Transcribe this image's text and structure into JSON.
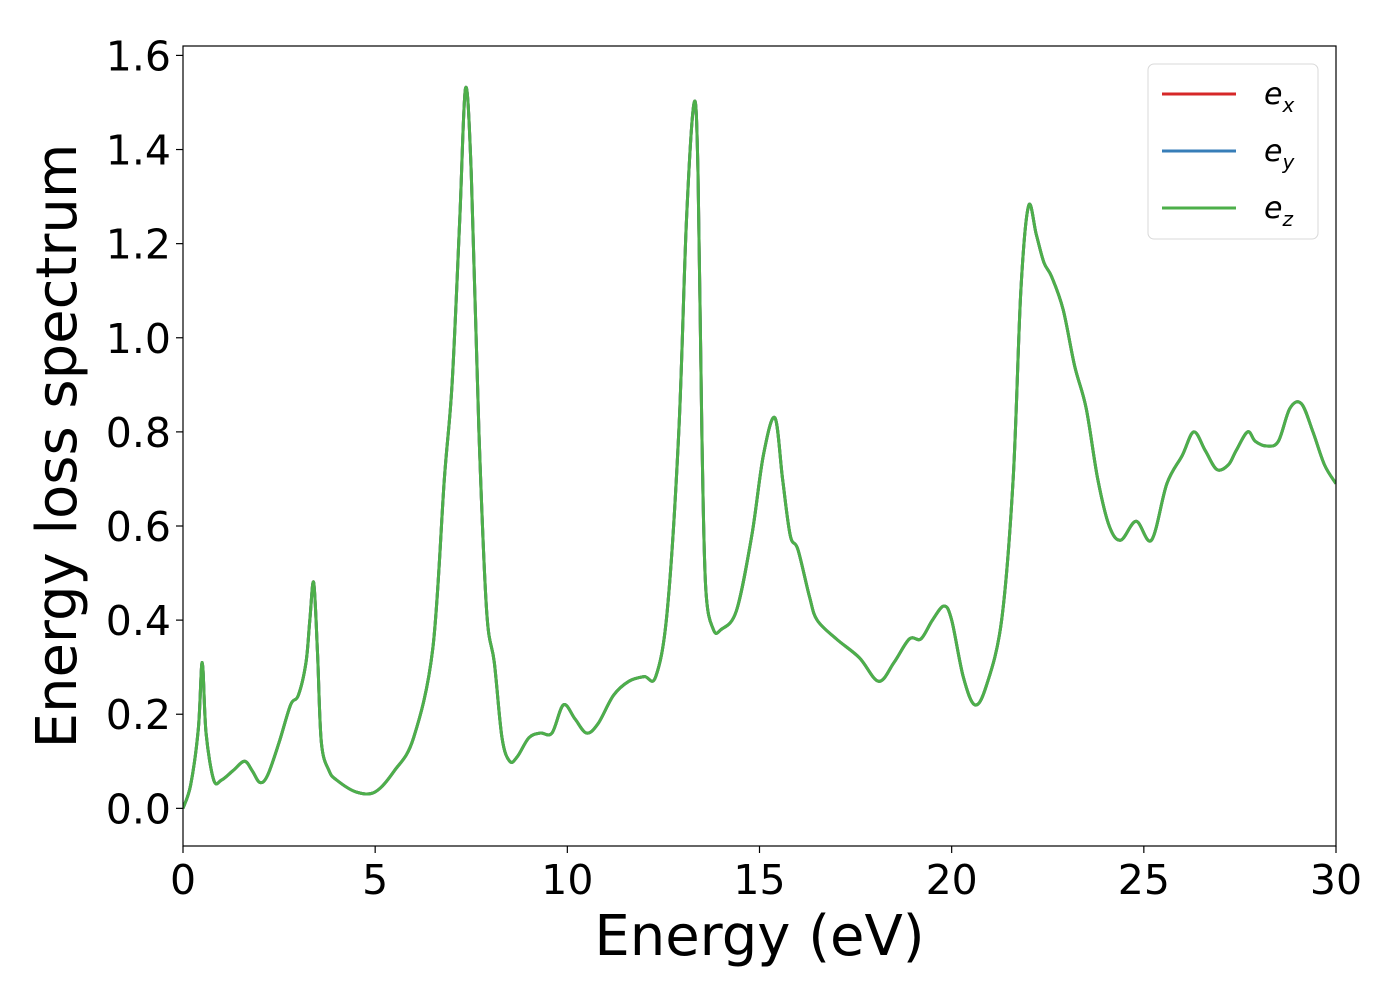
{
  "chart_data": {
    "type": "line",
    "xlabel": "Energy (eV)",
    "ylabel": "Energy loss spectrum",
    "xlim": [
      0,
      30
    ],
    "ylim": [
      -0.08,
      1.62
    ],
    "xticks": [
      0,
      5,
      10,
      15,
      20,
      25,
      30
    ],
    "xtick_labels": [
      "0",
      "5",
      "10",
      "15",
      "20",
      "25",
      "30"
    ],
    "yticks": [
      0.0,
      0.2,
      0.4,
      0.6,
      0.8,
      1.0,
      1.2,
      1.4,
      1.6
    ],
    "ytick_labels": [
      "0.0",
      "0.2",
      "0.4",
      "0.6",
      "0.8",
      "1.0",
      "1.2",
      "1.4",
      "1.6"
    ],
    "grid": false,
    "legend_position": "top-right",
    "x": [
      0.0,
      0.2,
      0.4,
      0.5,
      0.6,
      0.8,
      1.0,
      1.3,
      1.6,
      1.8,
      2.0,
      2.2,
      2.5,
      2.8,
      3.0,
      3.2,
      3.3,
      3.4,
      3.5,
      3.6,
      3.8,
      4.0,
      4.5,
      5.0,
      5.5,
      6.0,
      6.5,
      6.8,
      7.0,
      7.2,
      7.35,
      7.5,
      7.7,
      7.9,
      8.1,
      8.3,
      8.5,
      8.7,
      9.0,
      9.3,
      9.6,
      9.9,
      10.2,
      10.5,
      10.8,
      11.2,
      11.6,
      12.0,
      12.3,
      12.6,
      12.9,
      13.1,
      13.3,
      13.4,
      13.5,
      13.6,
      13.8,
      14.0,
      14.4,
      14.8,
      15.1,
      15.4,
      15.6,
      15.8,
      16.0,
      16.3,
      16.5,
      17.0,
      17.6,
      18.1,
      18.5,
      18.9,
      19.2,
      19.5,
      19.8,
      20.0,
      20.3,
      20.6,
      20.9,
      21.3,
      21.6,
      21.8,
      22.0,
      22.2,
      22.4,
      22.6,
      22.9,
      23.2,
      23.5,
      23.8,
      24.1,
      24.4,
      24.8,
      25.2,
      25.6,
      26.0,
      26.3,
      26.6,
      26.9,
      27.2,
      27.4,
      27.7,
      27.9,
      28.2,
      28.5,
      28.8,
      29.1,
      29.4,
      29.7,
      30.0
    ],
    "series": [
      {
        "name": "e_x",
        "color": "#d62728",
        "values": [
          0.0,
          0.05,
          0.17,
          0.31,
          0.16,
          0.06,
          0.06,
          0.08,
          0.1,
          0.08,
          0.055,
          0.07,
          0.14,
          0.22,
          0.24,
          0.31,
          0.4,
          0.48,
          0.33,
          0.14,
          0.08,
          0.06,
          0.035,
          0.035,
          0.08,
          0.15,
          0.34,
          0.7,
          0.9,
          1.25,
          1.53,
          1.35,
          0.8,
          0.42,
          0.31,
          0.15,
          0.1,
          0.11,
          0.15,
          0.16,
          0.16,
          0.22,
          0.19,
          0.16,
          0.18,
          0.24,
          0.27,
          0.28,
          0.28,
          0.42,
          0.8,
          1.25,
          1.5,
          1.35,
          0.8,
          0.47,
          0.38,
          0.38,
          0.42,
          0.58,
          0.75,
          0.83,
          0.7,
          0.58,
          0.55,
          0.45,
          0.4,
          0.36,
          0.32,
          0.27,
          0.31,
          0.36,
          0.36,
          0.4,
          0.43,
          0.4,
          0.28,
          0.22,
          0.26,
          0.4,
          0.7,
          1.1,
          1.28,
          1.22,
          1.16,
          1.13,
          1.06,
          0.94,
          0.85,
          0.7,
          0.6,
          0.57,
          0.61,
          0.57,
          0.69,
          0.75,
          0.8,
          0.76,
          0.72,
          0.73,
          0.76,
          0.8,
          0.78,
          0.77,
          0.78,
          0.85,
          0.86,
          0.8,
          0.73,
          0.69
        ]
      },
      {
        "name": "e_y",
        "color": "#377eb8",
        "values": [
          0.0,
          0.05,
          0.17,
          0.31,
          0.16,
          0.06,
          0.06,
          0.08,
          0.1,
          0.08,
          0.055,
          0.07,
          0.14,
          0.22,
          0.24,
          0.31,
          0.4,
          0.48,
          0.33,
          0.14,
          0.08,
          0.06,
          0.035,
          0.035,
          0.08,
          0.15,
          0.34,
          0.7,
          0.9,
          1.25,
          1.53,
          1.35,
          0.8,
          0.42,
          0.31,
          0.15,
          0.1,
          0.11,
          0.15,
          0.16,
          0.16,
          0.22,
          0.19,
          0.16,
          0.18,
          0.24,
          0.27,
          0.28,
          0.28,
          0.42,
          0.8,
          1.25,
          1.5,
          1.35,
          0.8,
          0.47,
          0.38,
          0.38,
          0.42,
          0.58,
          0.75,
          0.83,
          0.7,
          0.58,
          0.55,
          0.45,
          0.4,
          0.36,
          0.32,
          0.27,
          0.31,
          0.36,
          0.36,
          0.4,
          0.43,
          0.4,
          0.28,
          0.22,
          0.26,
          0.4,
          0.7,
          1.1,
          1.28,
          1.22,
          1.16,
          1.13,
          1.06,
          0.94,
          0.85,
          0.7,
          0.6,
          0.57,
          0.61,
          0.57,
          0.69,
          0.75,
          0.8,
          0.76,
          0.72,
          0.73,
          0.76,
          0.8,
          0.78,
          0.77,
          0.78,
          0.85,
          0.86,
          0.8,
          0.73,
          0.69
        ]
      },
      {
        "name": "e_z",
        "color": "#4daf4a",
        "values": [
          0.0,
          0.05,
          0.17,
          0.31,
          0.16,
          0.06,
          0.06,
          0.08,
          0.1,
          0.08,
          0.055,
          0.07,
          0.14,
          0.22,
          0.24,
          0.31,
          0.4,
          0.48,
          0.33,
          0.14,
          0.08,
          0.06,
          0.035,
          0.035,
          0.08,
          0.15,
          0.34,
          0.7,
          0.9,
          1.25,
          1.53,
          1.35,
          0.8,
          0.42,
          0.31,
          0.15,
          0.1,
          0.11,
          0.15,
          0.16,
          0.16,
          0.22,
          0.19,
          0.16,
          0.18,
          0.24,
          0.27,
          0.28,
          0.28,
          0.42,
          0.8,
          1.25,
          1.5,
          1.35,
          0.8,
          0.47,
          0.38,
          0.38,
          0.42,
          0.58,
          0.75,
          0.83,
          0.7,
          0.58,
          0.55,
          0.45,
          0.4,
          0.36,
          0.32,
          0.27,
          0.31,
          0.36,
          0.36,
          0.4,
          0.43,
          0.4,
          0.28,
          0.22,
          0.26,
          0.4,
          0.7,
          1.1,
          1.28,
          1.22,
          1.16,
          1.13,
          1.06,
          0.94,
          0.85,
          0.7,
          0.6,
          0.57,
          0.61,
          0.57,
          0.69,
          0.75,
          0.8,
          0.76,
          0.72,
          0.73,
          0.76,
          0.8,
          0.78,
          0.77,
          0.78,
          0.85,
          0.86,
          0.8,
          0.73,
          0.69
        ]
      }
    ],
    "legend": [
      {
        "base": "e",
        "sub": "x",
        "color": "#d62728"
      },
      {
        "base": "e",
        "sub": "y",
        "color": "#377eb8"
      },
      {
        "base": "e",
        "sub": "z",
        "color": "#4daf4a"
      }
    ]
  }
}
